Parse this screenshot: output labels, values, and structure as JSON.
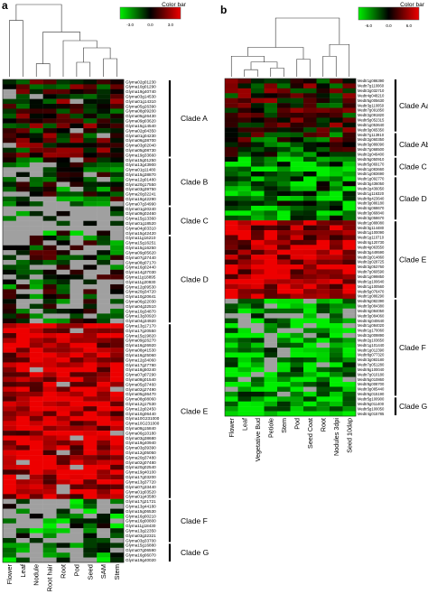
{
  "chart_data": [
    {
      "type": "heatmap",
      "panel_label": "a",
      "colorbar": {
        "title": "Color bar",
        "ticks": [
          "-3.0",
          "0.0",
          "3.0"
        ],
        "low_color": "#00ee00",
        "mid_color": "#000000",
        "high_color": "#ee0000",
        "missing_color": "#a0a0a0"
      },
      "columns": [
        "Flower",
        "Leaf",
        "Nodule",
        "Root hair",
        "Root",
        "Pod",
        "Seed",
        "SAM",
        "Stem"
      ],
      "rows": [
        "Glyma02g01230",
        "Glyma10g01290",
        "Glyma19g40740",
        "Glyma03g14530",
        "Glyma01g14310",
        "Glyma05g26390",
        "Glyma08g09200",
        "Glyma05g26430",
        "Glyma09g03620",
        "Glyma15g14540",
        "Glyma02g04350",
        "Glyma01g04230",
        "Glyma06g38700",
        "Glyma03g02040",
        "Glyma05g08730",
        "Glyma19g33660",
        "Glyma15g01250",
        "Glyma13g43900",
        "Glyma01g11480",
        "Glyma15g38870",
        "Glyma12g01480",
        "Glyma20g17550",
        "Glyma03g39750",
        "Glyma20g32241",
        "Glyma19g42290",
        "Glyma07g34990",
        "Glyma01g20240",
        "Glyma09g02460",
        "Glyma15g13360",
        "Glyma01g18520",
        "Glyma04g03310",
        "Glyma15g42420",
        "Glyma11g16210",
        "Glyma15g16251",
        "Glyma15g16250",
        "Glyma09g05620",
        "Glyma07g37440",
        "Glyma08g07170",
        "Glyma16g02440",
        "Glyma14g37030",
        "Glyma11g18895",
        "Glyma11g20930",
        "Glyma12g09530",
        "Glyma20g34720",
        "Glyma10g20641",
        "Glyma06g22030",
        "Glyma04g32510",
        "Glyma10g34870",
        "Glyma13g30920",
        "Glyma04g34920",
        "Glyma13g17170",
        "Glyma17g20550",
        "Glyma15g19820",
        "Glyma09g26270",
        "Glyma16g26920",
        "Glyma08g41530",
        "Glyma16g25060",
        "Glyma12g34060",
        "Glyma17g27780",
        "Glyma18g50240",
        "Glyma07g07290",
        "Glyma08g01540",
        "Glyma05g37460",
        "Glyma02g27490",
        "Glyma05g36470",
        "Glyma08g08060",
        "Glyma12g17530",
        "Glyma12g02450",
        "Glyma10g06440",
        "Glyma10G231000",
        "Glyma10G231000",
        "Glyma08g15840",
        "Glyma06g10180",
        "Glyma03g38680",
        "Glyma19g40940",
        "Glyma03g39390",
        "Glyma12g05050",
        "Glyma20g37480",
        "Glyma02g07480",
        "Glyma20g02540",
        "Glyma19g40100",
        "Glyma17g03200",
        "Glyma13g37720",
        "Glyma07g33440",
        "Glyma01g03520",
        "Glyma01g43580",
        "Glyma17g21721",
        "Glyma13g44180",
        "Glyma15g06530",
        "Glyma16g00210",
        "Glyma16g00800",
        "Glyma11g18430",
        "Glyma13g22350",
        "Glyma03g32321",
        "Glyma03g33700",
        "Glyma15g16880",
        "Glyma07g06590",
        "Glyma16g06070",
        "Glyma19g40020"
      ],
      "clades": [
        {
          "label": "Clade A",
          "rows": [
            0,
            15
          ]
        },
        {
          "label": "Clade B",
          "rows": [
            16,
            25
          ]
        },
        {
          "label": "Clade C",
          "rows": [
            26,
            31
          ]
        },
        {
          "label": "Clade D",
          "rows": [
            32,
            49
          ]
        },
        {
          "label": "Clade E",
          "rows": [
            50,
            85
          ]
        },
        {
          "label": "Clade F",
          "rows": [
            86,
            94
          ]
        },
        {
          "label": "Clade G",
          "rows": [
            95,
            98
          ]
        }
      ]
    },
    {
      "type": "heatmap",
      "panel_label": "b",
      "colorbar": {
        "title": "Color bar",
        "ticks": [
          "-6.0",
          "0.0",
          "6.0"
        ],
        "low_color": "#00ee00",
        "mid_color": "#000000",
        "high_color": "#ee0000",
        "missing_color": "#a0a0a0"
      },
      "columns": [
        "Flower",
        "Leaf",
        "Vegetative Bud",
        "Petiole",
        "Stem",
        "Pod",
        "Seed Coat",
        "Root",
        "Nodules 3dpi",
        "Seed 10dap"
      ],
      "rows": [
        "Medtr1g086390",
        "Medtr7g110060",
        "Medtr2g032710",
        "Medtr4g048210",
        "Medtr5g005630",
        "Medtr3g110050",
        "Medtr7g091850",
        "Medtr2g091820",
        "Medtr5g052315",
        "Medtr1g053640",
        "Medtr3g065350",
        "Medtr7g113910",
        "Medtr2g060350",
        "Medtr3g086090",
        "Medtr7g068500",
        "Medtr2g049400",
        "Medtr5g050910",
        "Medtr5g069170",
        "Medtr1g083660",
        "Medtr1g083690",
        "Medtr1g092770",
        "Medtr3g436050",
        "Medtr2g436050",
        "Medtr1g116320",
        "Medtr8g423640",
        "Medtr3g086180",
        "Medtr4g068670",
        "Medtr3g068840",
        "Medtr3g058670",
        "Medtr1g088080",
        "Medtr3g114480",
        "Medtr1g100090",
        "Medtr1g110710",
        "Medtr4g120730",
        "Medtr4g063550",
        "Medtr3g449590",
        "Medtr2g014860",
        "Medtr2g028725",
        "Medtr3g053760",
        "Medtr7g060590",
        "Medtr1g099850",
        "Medtr1g100640",
        "Medtr1g100560",
        "Medtr5g076470",
        "Medtr1g086290",
        "Medtr6g082390",
        "Medtr3g084380",
        "Medtr4g084050",
        "Medtr3g084060",
        "Medtr4g040640",
        "Medtr1g084020",
        "Medtr1g170060",
        "Medtr2g009890",
        "Medtr2g103650",
        "Medtr1g101440",
        "Medtr1g012390",
        "Medtr8g077320",
        "Medtr3g083180",
        "Medtr7g051280",
        "Medtr8g100040",
        "Medtr7g010180",
        "Medtr5g010860",
        "Medtr8g008700",
        "Medtr3g085440",
        "Medtr6g015190",
        "Medtr5g100900",
        "Medtr5g011400",
        "Medtr5g100050",
        "Medtr4g015785"
      ],
      "clades": [
        {
          "label": "Clade Aa",
          "rows": [
            0,
            10
          ]
        },
        {
          "label": "Clade Ab",
          "rows": [
            11,
            15
          ]
        },
        {
          "label": "Clade C",
          "rows": [
            16,
            19
          ]
        },
        {
          "label": "Clade D",
          "rows": [
            20,
            28
          ]
        },
        {
          "label": "Clade E",
          "rows": [
            29,
            44
          ]
        },
        {
          "label": "Clade F",
          "rows": [
            45,
            64
          ]
        },
        {
          "label": "Clade G",
          "rows": [
            65,
            68
          ]
        }
      ]
    }
  ]
}
